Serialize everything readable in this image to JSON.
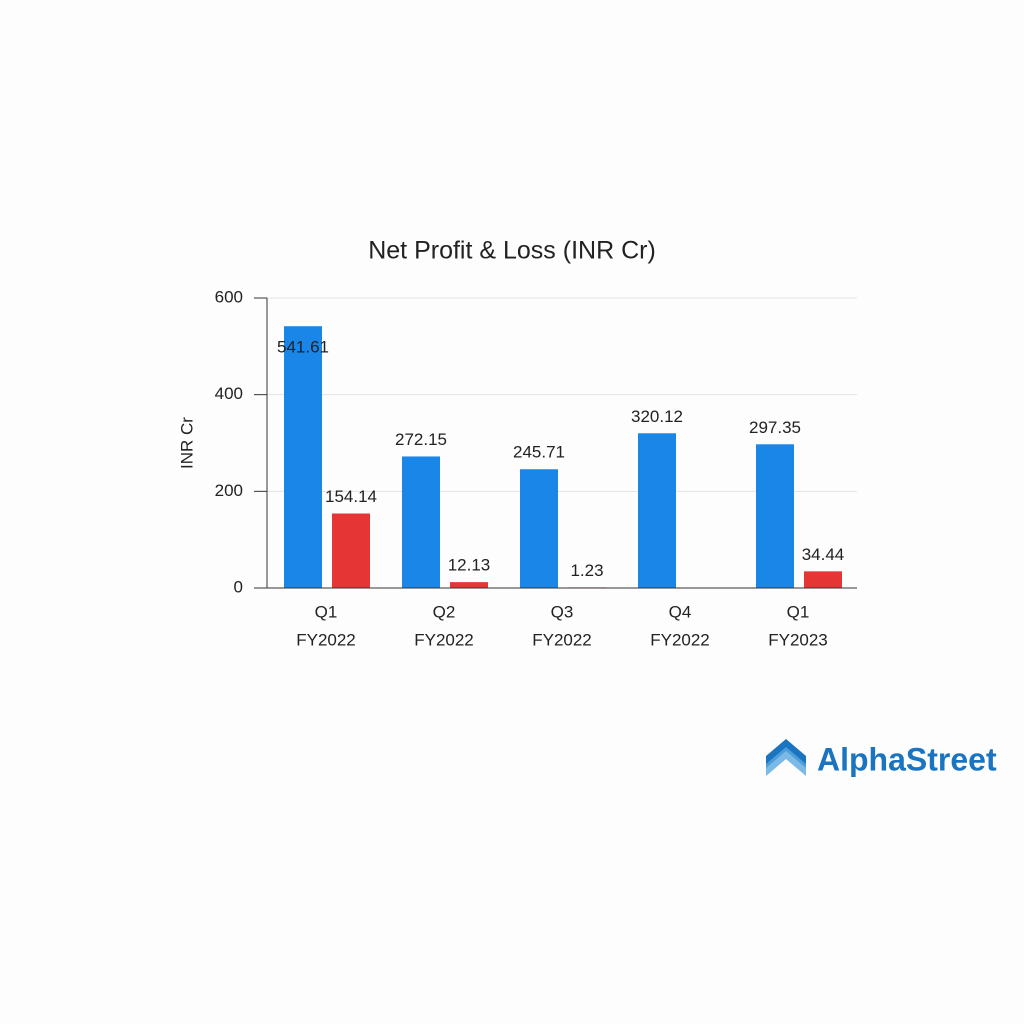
{
  "chart_data": {
    "type": "bar",
    "title": "Net Profit & Loss (INR Cr)",
    "ylabel": "INR Cr",
    "categories": [
      [
        "Q1",
        "FY2022"
      ],
      [
        "Q2",
        "FY2022"
      ],
      [
        "Q3",
        "FY2022"
      ],
      [
        "Q4",
        "FY2022"
      ],
      [
        "Q1",
        "FY2023"
      ]
    ],
    "series": [
      {
        "color": "#1a86e8",
        "values": [
          541.61,
          272.15,
          245.71,
          320.12,
          297.35
        ]
      },
      {
        "color": "#e53535",
        "values": [
          154.14,
          12.13,
          1.23,
          null,
          34.44
        ]
      }
    ],
    "ylim": [
      0,
      600
    ],
    "yticks": [
      0,
      200,
      400,
      600
    ],
    "grid": true
  },
  "brand": "AlphaStreet"
}
